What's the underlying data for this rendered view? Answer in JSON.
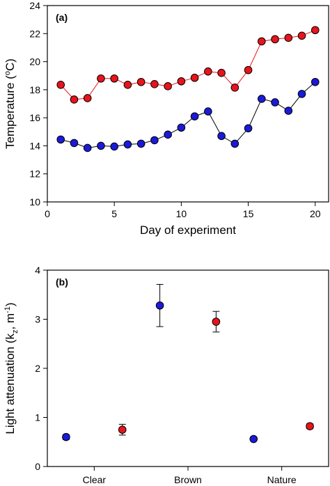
{
  "chart_data": [
    {
      "type": "line",
      "panel_label": "(a)",
      "xlabel": "Day of experiment",
      "ylabel_main": "Temperature (",
      "ylabel_sup": "o",
      "ylabel_end": "C)",
      "xlim": [
        0,
        21
      ],
      "ylim": [
        10,
        24
      ],
      "xticks": [
        0,
        5,
        10,
        15,
        20
      ],
      "yticks": [
        10,
        12,
        14,
        16,
        18,
        20,
        22,
        24
      ],
      "grid": false,
      "x": [
        1,
        2,
        3,
        4,
        5,
        6,
        7,
        8,
        9,
        10,
        11,
        12,
        13,
        14,
        15,
        16,
        17,
        18,
        19,
        20
      ],
      "series": [
        {
          "color": "#e8141c",
          "line_color": "#e8141c",
          "values": [
            18.35,
            17.3,
            17.4,
            18.8,
            18.8,
            18.35,
            18.55,
            18.4,
            18.25,
            18.6,
            18.85,
            19.3,
            19.2,
            18.15,
            19.4,
            21.45,
            21.6,
            21.7,
            21.85,
            22.25
          ]
        },
        {
          "color": "#1a1ad8",
          "line_color": "#000000",
          "values": [
            14.45,
            14.2,
            13.85,
            14.0,
            13.95,
            14.1,
            14.15,
            14.4,
            14.8,
            15.3,
            16.1,
            16.45,
            14.7,
            14.15,
            15.25,
            17.35,
            17.1,
            16.5,
            17.7,
            18.55
          ]
        }
      ]
    },
    {
      "type": "scatter",
      "panel_label": "(b)",
      "xlabel": "",
      "ylabel_main": "Light attenuation (k",
      "ylabel_sub": "z",
      "ylabel_mid": ", m",
      "ylabel_sup": "-1",
      "ylabel_end": ")",
      "categories": [
        "Clear",
        "Brown",
        "Nature"
      ],
      "ylim": [
        0,
        4
      ],
      "yticks": [
        0,
        1,
        2,
        3,
        4
      ],
      "grid": false,
      "series": [
        {
          "color": "#1a1ad8",
          "values": [
            0.6,
            3.28,
            0.56
          ],
          "err_low": [
            0.05,
            0.43,
            0.02
          ],
          "err_high": [
            0.05,
            0.43,
            0.02
          ]
        },
        {
          "color": "#e8141c",
          "values": [
            0.75,
            2.95,
            0.82
          ],
          "err_low": [
            0.11,
            0.21,
            0.05
          ],
          "err_high": [
            0.11,
            0.21,
            0.05
          ]
        }
      ]
    }
  ]
}
